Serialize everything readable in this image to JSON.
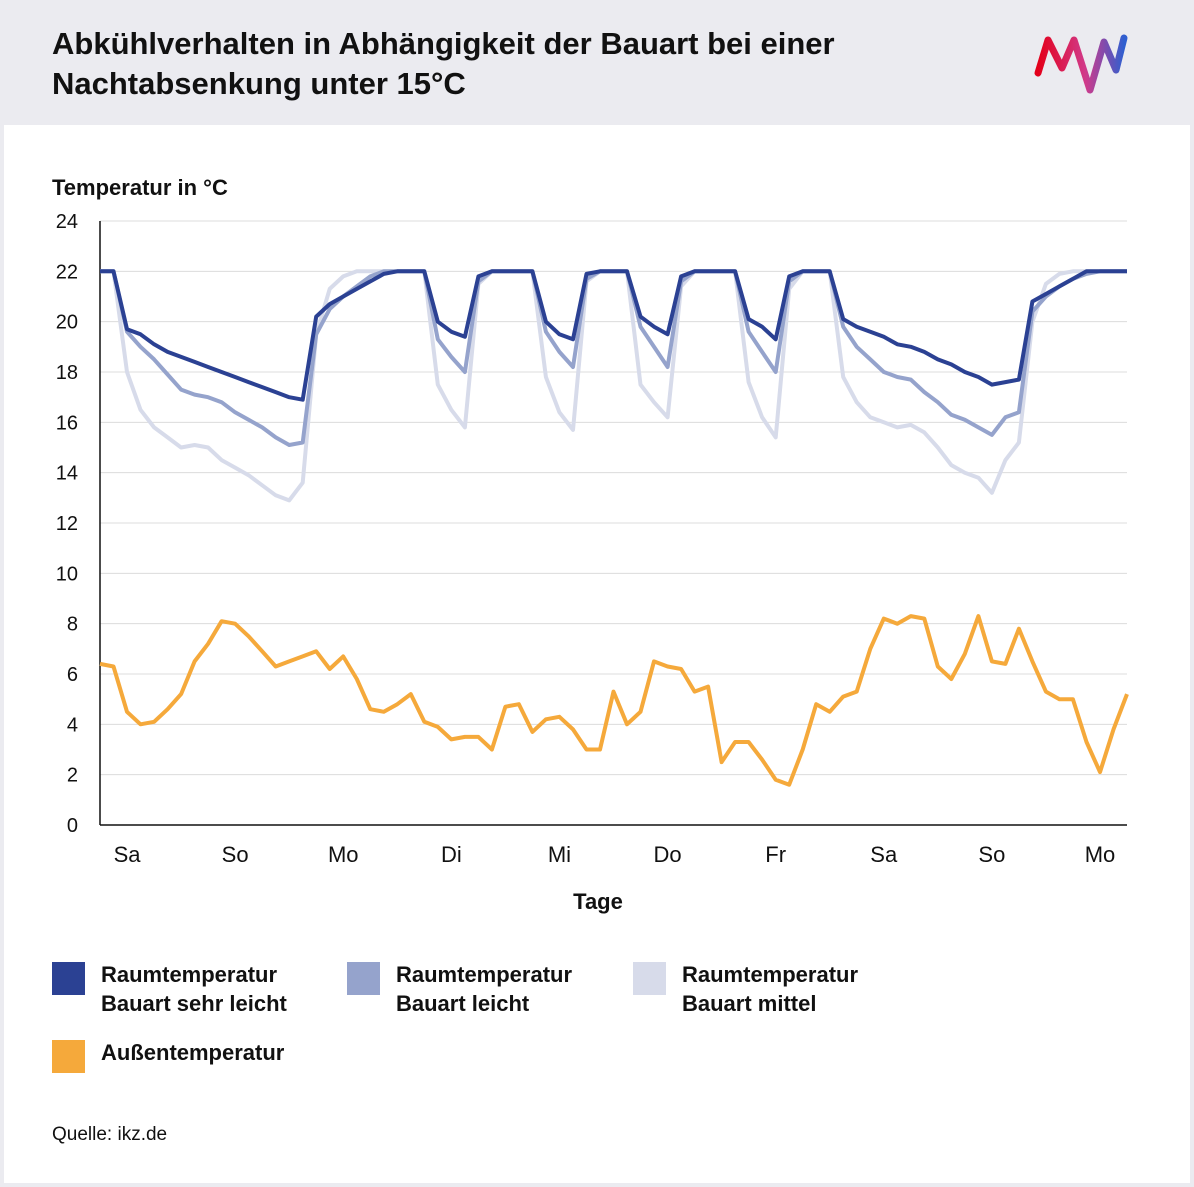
{
  "chart_data": {
    "type": "line",
    "title": "Abkühlverhalten in Abhängigkeit der Bauart bei einer Nachtabsenkung unter 15°C",
    "y_label": "Temperatur in °C",
    "x_label": "Tage",
    "source": "Quelle: ikz.de",
    "grid": true,
    "xlim": [
      0,
      9.5
    ],
    "xticks": [
      {
        "value": 0.25,
        "label": "Sa"
      },
      {
        "value": 1.25,
        "label": "So"
      },
      {
        "value": 2.25,
        "label": "Mo"
      },
      {
        "value": 3.25,
        "label": "Di"
      },
      {
        "value": 4.25,
        "label": "Mi"
      },
      {
        "value": 5.25,
        "label": "Do"
      },
      {
        "value": 6.25,
        "label": "Fr"
      },
      {
        "value": 7.25,
        "label": "Sa"
      },
      {
        "value": 8.25,
        "label": "So"
      },
      {
        "value": 9.25,
        "label": "Mo"
      }
    ],
    "ylim": [
      0,
      24
    ],
    "yticks": [
      0,
      2,
      4,
      6,
      8,
      10,
      12,
      14,
      16,
      18,
      20,
      22,
      24
    ],
    "x": [
      0,
      0.125,
      0.25,
      0.375,
      0.5,
      0.625,
      0.75,
      0.875,
      1,
      1.125,
      1.25,
      1.375,
      1.5,
      1.625,
      1.75,
      1.875,
      2,
      2.125,
      2.25,
      2.375,
      2.5,
      2.625,
      2.75,
      2.875,
      3,
      3.125,
      3.25,
      3.375,
      3.5,
      3.625,
      3.75,
      3.875,
      4,
      4.125,
      4.25,
      4.375,
      4.5,
      4.625,
      4.75,
      4.875,
      5,
      5.125,
      5.25,
      5.375,
      5.5,
      5.625,
      5.75,
      5.875,
      6,
      6.125,
      6.25,
      6.375,
      6.5,
      6.625,
      6.75,
      6.875,
      7,
      7.125,
      7.25,
      7.375,
      7.5,
      7.625,
      7.75,
      7.875,
      8,
      8.125,
      8.25,
      8.375,
      8.5,
      8.625,
      8.75,
      8.875,
      9,
      9.125,
      9.25,
      9.375,
      9.5
    ],
    "series": [
      {
        "name": "Raumtemperatur Bauart mittel",
        "color": "#d7dbea",
        "legend_order": 2,
        "values": [
          22,
          22,
          18.0,
          16.5,
          15.8,
          15.4,
          15.0,
          15.1,
          15.0,
          14.5,
          14.2,
          13.9,
          13.5,
          13.1,
          12.9,
          13.6,
          19.5,
          21.3,
          21.8,
          22,
          22,
          22,
          22,
          22,
          22,
          17.5,
          16.5,
          15.8,
          21.5,
          22,
          22,
          22,
          22,
          17.8,
          16.4,
          15.7,
          21.6,
          22,
          22,
          22,
          17.5,
          16.8,
          16.2,
          21.4,
          22,
          22,
          22,
          22,
          17.6,
          16.2,
          15.4,
          21.3,
          22,
          22,
          22,
          17.8,
          16.8,
          16.2,
          16.0,
          15.8,
          15.9,
          15.6,
          15.0,
          14.3,
          14.0,
          13.8,
          13.2,
          14.5,
          15.2,
          20.0,
          21.5,
          21.9,
          22,
          22,
          22,
          22,
          22
        ]
      },
      {
        "name": "Raumtemperatur Bauart leicht",
        "color": "#95a3cc",
        "legend_order": 1,
        "values": [
          22,
          22,
          19.6,
          19.0,
          18.5,
          17.9,
          17.3,
          17.1,
          17.0,
          16.8,
          16.4,
          16.1,
          15.8,
          15.4,
          15.1,
          15.2,
          19.5,
          20.5,
          21.0,
          21.4,
          21.8,
          22,
          22,
          22,
          22,
          19.3,
          18.6,
          18.0,
          21.6,
          22,
          22,
          22,
          22,
          19.6,
          18.8,
          18.2,
          21.7,
          22,
          22,
          22,
          19.8,
          19.0,
          18.2,
          21.6,
          22,
          22,
          22,
          22,
          19.6,
          18.8,
          18.0,
          21.6,
          22,
          22,
          22,
          19.8,
          19.0,
          18.5,
          18.0,
          17.8,
          17.7,
          17.2,
          16.8,
          16.3,
          16.1,
          15.8,
          15.5,
          16.2,
          16.4,
          20.4,
          21.0,
          21.4,
          21.7,
          21.9,
          22,
          22,
          22
        ]
      },
      {
        "name": "Raumtemperatur Bauart sehr leicht",
        "color": "#2b4193",
        "legend_order": 0,
        "values": [
          22,
          22,
          19.7,
          19.5,
          19.1,
          18.8,
          18.6,
          18.4,
          18.2,
          18.0,
          17.8,
          17.6,
          17.4,
          17.2,
          17.0,
          16.9,
          20.2,
          20.7,
          21.0,
          21.3,
          21.6,
          21.9,
          22,
          22,
          22,
          20.0,
          19.6,
          19.4,
          21.8,
          22,
          22,
          22,
          22,
          20.0,
          19.5,
          19.3,
          21.9,
          22,
          22,
          22,
          20.2,
          19.8,
          19.5,
          21.8,
          22,
          22,
          22,
          22,
          20.1,
          19.8,
          19.3,
          21.8,
          22,
          22,
          22,
          20.1,
          19.8,
          19.6,
          19.4,
          19.1,
          19.0,
          18.8,
          18.5,
          18.3,
          18.0,
          17.8,
          17.5,
          17.6,
          17.7,
          20.8,
          21.1,
          21.4,
          21.7,
          22,
          22,
          22,
          22
        ]
      },
      {
        "name": "Außentemperatur",
        "color": "#f5a93b",
        "legend_order": 3,
        "values": [
          6.4,
          6.3,
          4.5,
          4.0,
          4.1,
          4.6,
          5.2,
          6.5,
          7.2,
          8.1,
          8.0,
          7.5,
          6.9,
          6.3,
          6.5,
          6.7,
          6.9,
          6.2,
          6.7,
          5.8,
          4.6,
          4.5,
          4.8,
          5.2,
          4.1,
          3.9,
          3.4,
          3.5,
          3.5,
          3.0,
          4.7,
          4.8,
          3.7,
          4.2,
          4.3,
          3.8,
          3.0,
          3.0,
          5.3,
          4.0,
          4.5,
          6.5,
          6.3,
          6.2,
          5.3,
          5.5,
          2.5,
          3.3,
          3.3,
          2.6,
          1.8,
          1.6,
          3.0,
          4.8,
          4.5,
          5.1,
          5.3,
          7.0,
          8.2,
          8.0,
          8.3,
          8.2,
          6.3,
          5.8,
          6.8,
          8.3,
          6.5,
          6.4,
          7.8,
          6.5,
          5.3,
          5.0,
          5.0,
          3.3,
          2.1,
          3.8,
          5.2
        ]
      }
    ]
  }
}
